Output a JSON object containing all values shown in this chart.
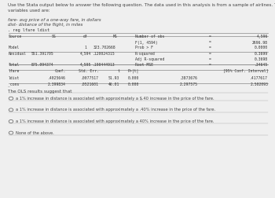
{
  "bg_color": "#efefef",
  "title_text": "Use the Stata output below to answer the following question. The data used in this analysis is from a sample of airlines. The\nvariables used are:",
  "var1": "fare- avg price of a one-way fare, in dollars",
  "var2": "dist- distance of the flight, in miles",
  "command": ". reg lfare ldist",
  "question": "The OLS results suggest that",
  "options": [
    "a 1% increase in distance is associated with approximately a $.40 increase in the price of the fare.",
    "a 1% increase in distance is associated with approximately a .40% increase in the price of the fare.",
    "a 1% increase in distance is associated with approximately a 40% increase in the price of the fare.",
    "None of the above."
  ],
  "text_color": "#444444",
  "line_color": "#888888",
  "mono_color": "#333333"
}
